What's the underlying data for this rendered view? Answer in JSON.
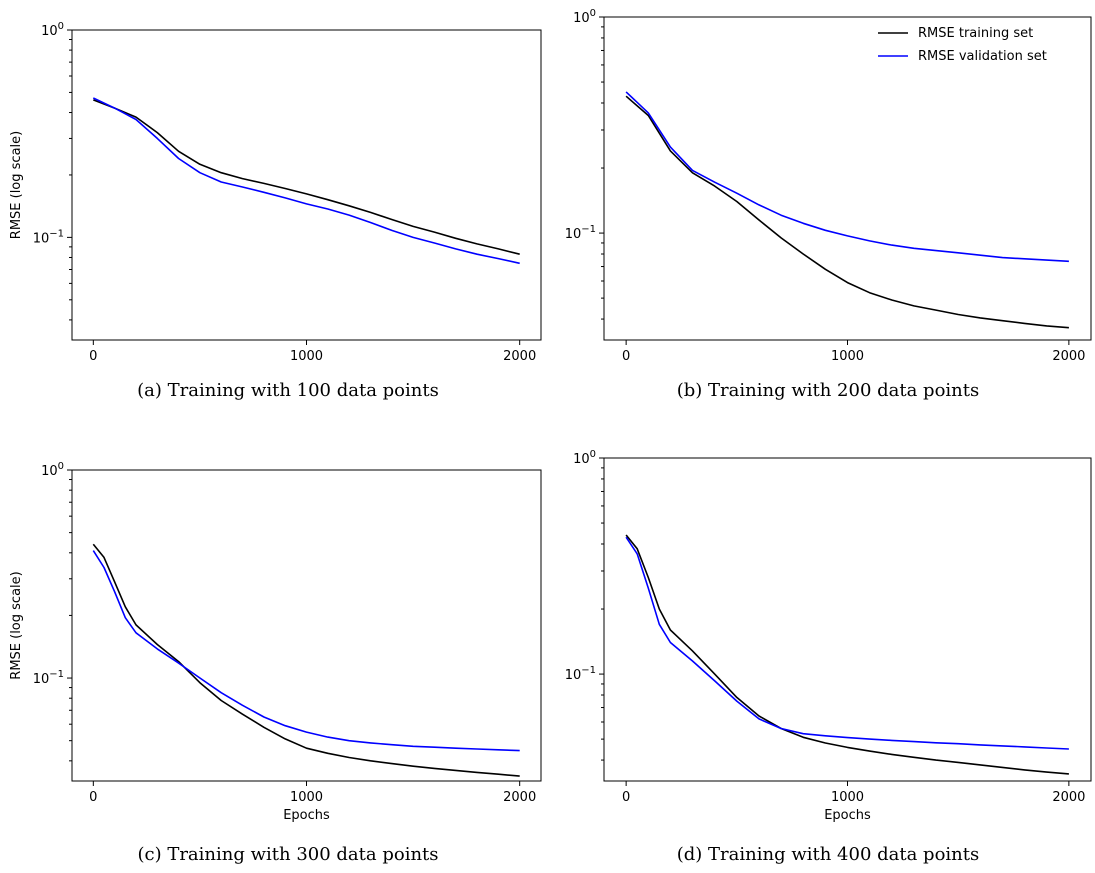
{
  "colors": {
    "training": "#000000",
    "validation": "#0000ff"
  },
  "chart_data": [
    {
      "type": "line",
      "caption": "(a) Training with 100 data points",
      "xlabel": "",
      "ylabel": "RMSE (log scale)",
      "yscale": "log",
      "xlim": [
        -100,
        2100
      ],
      "ylim": [
        0.032,
        1.0
      ],
      "xticks": [
        0,
        1000,
        2000
      ],
      "yticks": [
        {
          "value": 1.0,
          "label": "10^0"
        },
        {
          "value": 0.1,
          "label": "10^-1"
        }
      ],
      "legend": null,
      "series": [
        {
          "color": "training",
          "x": [
            0,
            100,
            200,
            300,
            400,
            500,
            600,
            700,
            800,
            900,
            1000,
            1100,
            1200,
            1300,
            1400,
            1500,
            1600,
            1700,
            1800,
            1900,
            2000
          ],
          "y": [
            0.46,
            0.42,
            0.38,
            0.32,
            0.26,
            0.225,
            0.205,
            0.192,
            0.182,
            0.172,
            0.162,
            0.152,
            0.142,
            0.132,
            0.122,
            0.113,
            0.106,
            0.099,
            0.093,
            0.088,
            0.083
          ]
        },
        {
          "color": "validation",
          "x": [
            0,
            100,
            200,
            300,
            400,
            500,
            600,
            700,
            800,
            900,
            1000,
            1100,
            1200,
            1300,
            1400,
            1500,
            1600,
            1700,
            1800,
            1900,
            2000
          ],
          "y": [
            0.47,
            0.42,
            0.37,
            0.3,
            0.24,
            0.205,
            0.185,
            0.175,
            0.165,
            0.155,
            0.145,
            0.137,
            0.128,
            0.118,
            0.108,
            0.1,
            0.094,
            0.088,
            0.083,
            0.079,
            0.075
          ]
        }
      ]
    },
    {
      "type": "line",
      "caption": "(b) Training with 200 data points",
      "xlabel": "",
      "ylabel": "",
      "yscale": "log",
      "xlim": [
        -100,
        2100
      ],
      "ylim": [
        0.032,
        1.0
      ],
      "xticks": [
        0,
        1000,
        2000
      ],
      "yticks": [
        {
          "value": 1.0,
          "label": "10^0"
        },
        {
          "value": 0.1,
          "label": "10^-1"
        }
      ],
      "legend": {
        "position": "top-right",
        "entries": [
          {
            "label": "RMSE training set",
            "color": "training"
          },
          {
            "label": "RMSE validation set",
            "color": "validation"
          }
        ]
      },
      "series": [
        {
          "name": "RMSE training set",
          "color": "training",
          "x": [
            0,
            100,
            200,
            300,
            400,
            500,
            600,
            700,
            800,
            900,
            1000,
            1100,
            1200,
            1300,
            1400,
            1500,
            1600,
            1700,
            1800,
            1900,
            2000
          ],
          "y": [
            0.43,
            0.35,
            0.24,
            0.19,
            0.165,
            0.14,
            0.115,
            0.095,
            0.08,
            0.068,
            0.059,
            0.053,
            0.049,
            0.046,
            0.044,
            0.042,
            0.0405,
            0.0393,
            0.0382,
            0.0372,
            0.0365
          ]
        },
        {
          "name": "RMSE validation set",
          "color": "validation",
          "x": [
            0,
            100,
            200,
            300,
            400,
            500,
            600,
            700,
            800,
            900,
            1000,
            1100,
            1200,
            1300,
            1400,
            1500,
            1600,
            1700,
            1800,
            1900,
            2000
          ],
          "y": [
            0.45,
            0.36,
            0.25,
            0.195,
            0.172,
            0.153,
            0.135,
            0.121,
            0.111,
            0.103,
            0.097,
            0.092,
            0.088,
            0.085,
            0.083,
            0.081,
            0.079,
            0.077,
            0.076,
            0.075,
            0.074
          ]
        }
      ]
    },
    {
      "type": "line",
      "caption": "(c) Training with 300 data points",
      "xlabel": "Epochs",
      "ylabel": "RMSE (log scale)",
      "yscale": "log",
      "xlim": [
        -100,
        2100
      ],
      "ylim": [
        0.032,
        1.0
      ],
      "xticks": [
        0,
        1000,
        2000
      ],
      "yticks": [
        {
          "value": 1.0,
          "label": "10^0"
        },
        {
          "value": 0.1,
          "label": "10^-1"
        }
      ],
      "legend": null,
      "series": [
        {
          "color": "training",
          "x": [
            0,
            50,
            100,
            150,
            200,
            300,
            400,
            500,
            600,
            700,
            800,
            900,
            1000,
            1100,
            1200,
            1300,
            1400,
            1500,
            1600,
            1700,
            1800,
            1900,
            2000
          ],
          "y": [
            0.44,
            0.38,
            0.29,
            0.22,
            0.18,
            0.145,
            0.12,
            0.095,
            0.078,
            0.067,
            0.058,
            0.051,
            0.046,
            0.0435,
            0.0415,
            0.04,
            0.0388,
            0.0377,
            0.0368,
            0.036,
            0.0352,
            0.0345,
            0.0338
          ]
        },
        {
          "color": "validation",
          "x": [
            0,
            50,
            100,
            150,
            200,
            300,
            400,
            500,
            600,
            700,
            800,
            900,
            1000,
            1100,
            1200,
            1300,
            1400,
            1500,
            1600,
            1700,
            1800,
            1900,
            2000
          ],
          "y": [
            0.41,
            0.34,
            0.26,
            0.195,
            0.165,
            0.138,
            0.118,
            0.1,
            0.085,
            0.074,
            0.065,
            0.059,
            0.055,
            0.052,
            0.05,
            0.0488,
            0.0478,
            0.047,
            0.0465,
            0.046,
            0.0456,
            0.0452,
            0.0448
          ]
        }
      ]
    },
    {
      "type": "line",
      "caption": "(d) Training with 400 data points",
      "xlabel": "Epochs",
      "ylabel": "",
      "yscale": "log",
      "xlim": [
        -100,
        2100
      ],
      "ylim": [
        0.032,
        1.0
      ],
      "xticks": [
        0,
        1000,
        2000
      ],
      "yticks": [
        {
          "value": 1.0,
          "label": "10^0"
        },
        {
          "value": 0.1,
          "label": "10^-1"
        }
      ],
      "legend": null,
      "series": [
        {
          "color": "training",
          "x": [
            0,
            50,
            100,
            150,
            200,
            300,
            400,
            500,
            600,
            700,
            800,
            900,
            1000,
            1100,
            1200,
            1300,
            1400,
            1500,
            1600,
            1700,
            1800,
            1900,
            2000
          ],
          "y": [
            0.44,
            0.38,
            0.28,
            0.2,
            0.16,
            0.128,
            0.1,
            0.078,
            0.064,
            0.056,
            0.051,
            0.048,
            0.0458,
            0.044,
            0.0425,
            0.0412,
            0.04,
            0.039,
            0.038,
            0.037,
            0.036,
            0.0352,
            0.0345
          ]
        },
        {
          "color": "validation",
          "x": [
            0,
            50,
            100,
            150,
            200,
            300,
            400,
            500,
            600,
            700,
            800,
            900,
            1000,
            1100,
            1200,
            1300,
            1400,
            1500,
            1600,
            1700,
            1800,
            1900,
            2000
          ],
          "y": [
            0.43,
            0.36,
            0.25,
            0.17,
            0.14,
            0.115,
            0.093,
            0.075,
            0.062,
            0.056,
            0.053,
            0.0518,
            0.0508,
            0.05,
            0.0493,
            0.0487,
            0.0481,
            0.0476,
            0.047,
            0.0465,
            0.046,
            0.0455,
            0.045
          ]
        }
      ]
    }
  ]
}
